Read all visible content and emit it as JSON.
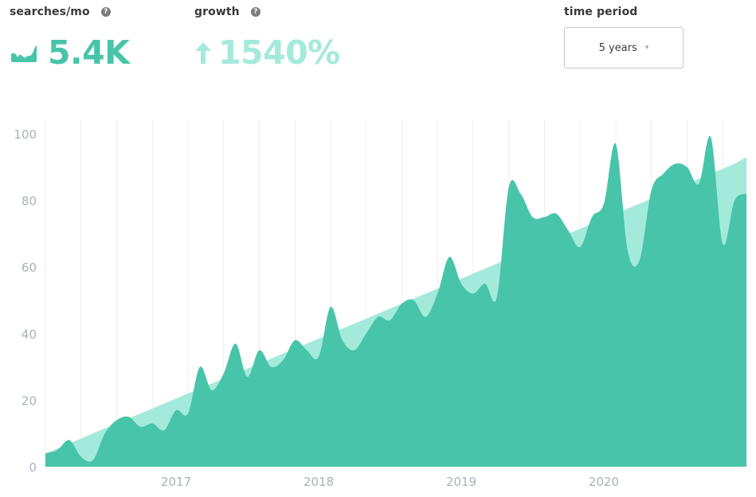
{
  "searches": {
    "label": "searches/mo",
    "help": "?",
    "value": "5.4K",
    "icon": "trend-sparkline-icon"
  },
  "growth": {
    "label": "growth",
    "help": "?",
    "value": "1540%",
    "icon": "arrow-up-icon"
  },
  "time_period": {
    "label": "time period",
    "selected": "5 years",
    "caret": "▾"
  },
  "colors": {
    "primary": "#48c4aa",
    "trend": "#a4eadb",
    "axis_text": "#a7b2b8",
    "grid": "#eeeeee"
  },
  "chart_data": {
    "type": "area",
    "title": "",
    "xlabel": "",
    "ylabel": "",
    "ylim": [
      0,
      100
    ],
    "y_ticks": [
      "0",
      "20",
      "40",
      "60",
      "80",
      "100"
    ],
    "x_ticks": [
      "2017",
      "2018",
      "2019",
      "2020"
    ],
    "grid": "vertical",
    "x": [
      "2016-02",
      "2016-03",
      "2016-04",
      "2016-05",
      "2016-06",
      "2016-07",
      "2016-08",
      "2016-09",
      "2016-10",
      "2016-11",
      "2016-12",
      "2017-01",
      "2017-02",
      "2017-03",
      "2017-04",
      "2017-05",
      "2017-06",
      "2017-07",
      "2017-08",
      "2017-09",
      "2017-10",
      "2017-11",
      "2017-12",
      "2018-01",
      "2018-02",
      "2018-03",
      "2018-04",
      "2018-05",
      "2018-06",
      "2018-07",
      "2018-08",
      "2018-09",
      "2018-10",
      "2018-11",
      "2018-12",
      "2019-01",
      "2019-02",
      "2019-03",
      "2019-04",
      "2019-05",
      "2019-06",
      "2019-07",
      "2019-08",
      "2019-09",
      "2019-10",
      "2019-11",
      "2019-12",
      "2020-01",
      "2020-02",
      "2020-03",
      "2020-04",
      "2020-05",
      "2020-06",
      "2020-07",
      "2020-08",
      "2020-09",
      "2020-10",
      "2020-11",
      "2020-12",
      "2021-01"
    ],
    "series": [
      {
        "values": [
          4,
          5,
          8,
          3,
          2,
          10,
          14,
          15,
          12,
          13,
          11,
          17,
          16,
          30,
          23,
          28,
          37,
          27,
          35,
          30,
          32,
          38,
          35,
          33,
          48,
          38,
          35,
          40,
          45,
          44,
          49,
          50,
          45,
          52,
          63,
          55,
          52,
          55,
          51,
          84,
          82,
          75,
          75,
          76,
          71,
          66,
          75,
          79,
          97,
          65,
          62,
          83,
          88,
          91,
          90,
          85,
          99,
          67,
          80,
          82
        ]
      },
      {
        "values": [
          4,
          5.5,
          7,
          8.5,
          10,
          11.5,
          13,
          14.5,
          16,
          17.5,
          19,
          20.5,
          22,
          23.5,
          25,
          26.5,
          28,
          29.5,
          31,
          32.5,
          34,
          35.5,
          37,
          38.5,
          40,
          41.5,
          43,
          44.5,
          46,
          47.5,
          49,
          50.5,
          52,
          53.5,
          55,
          56.5,
          58,
          59.5,
          61,
          62.5,
          64,
          65.5,
          67,
          68.5,
          70,
          71.5,
          73,
          74.5,
          76,
          77.5,
          79,
          80.5,
          82,
          83.5,
          85,
          86.5,
          88,
          89.5,
          91,
          93
        ]
      }
    ]
  }
}
